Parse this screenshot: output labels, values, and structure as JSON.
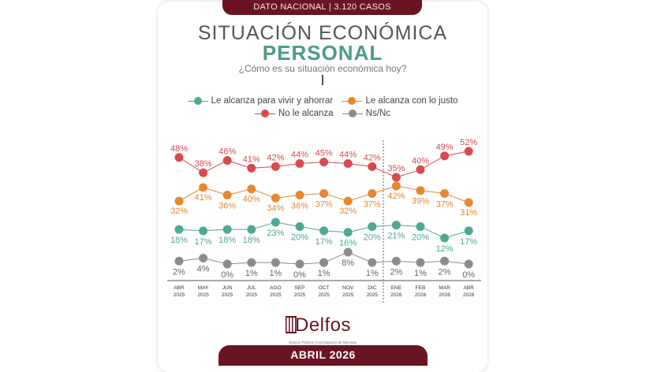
{
  "header": {
    "banner": "DATO NACIONAL | 3.120 CASOS",
    "title_line1": "SITUACIÓN ECONÓMICA",
    "title_line2": "PERSONAL",
    "question": "¿Cómo es su situación económica hoy?"
  },
  "legend": [
    {
      "label": "Le alcanza para vivir y ahorrar",
      "color": "#4fa894"
    },
    {
      "label": "Le alcanza con lo justo",
      "color": "#e8872f"
    },
    {
      "label": "No le alcanza",
      "color": "#d94a4f"
    },
    {
      "label": "Ns/Nc",
      "color": "#8c8c8c"
    }
  ],
  "footer": {
    "logo": "Delfos",
    "logo_tagline": "Opinión Pública | Investigación de Mercado",
    "banner": "ABRIL 2026"
  },
  "colors": {
    "brand_maroon": "#6a1421",
    "title_teal": "#4c9a8a",
    "green": "#4fa894",
    "orange": "#e8872f",
    "red": "#d94a4f",
    "gray": "#8c8c8c"
  },
  "chart_data": {
    "type": "line",
    "title": "SITUACIÓN ECONÓMICA PERSONAL",
    "subtitle": "¿Cómo es su situación económica hoy?",
    "xlabel": "",
    "ylabel": "",
    "grid": false,
    "legend_position": "top",
    "categories": [
      "ABR 2025",
      "MAY 2025",
      "JUN 2025",
      "JUL 2025",
      "AGO 2025",
      "SEP 2025",
      "OCT 2025",
      "NOV 2025",
      "DIC 2025",
      "ENE 2026",
      "FEB 2026",
      "MAR 2026",
      "ABR 2026"
    ],
    "series": [
      {
        "name": "No le alcanza",
        "color": "#d94a4f",
        "values": [
          48,
          38,
          46,
          41,
          42,
          44,
          45,
          44,
          42,
          35,
          40,
          49,
          52
        ]
      },
      {
        "name": "Le alcanza con lo justo",
        "color": "#e8872f",
        "values": [
          32,
          41,
          36,
          40,
          34,
          36,
          37,
          32,
          37,
          42,
          39,
          37,
          31
        ]
      },
      {
        "name": "Le alcanza para vivir y ahorrar",
        "color": "#4fa894",
        "values": [
          18,
          17,
          18,
          18,
          23,
          20,
          17,
          16,
          20,
          21,
          20,
          12,
          17
        ]
      },
      {
        "name": "Ns/Nc",
        "color": "#8c8c8c",
        "values": [
          2,
          4,
          0,
          1,
          1,
          0,
          1,
          8,
          1,
          2,
          1,
          2,
          0
        ]
      }
    ],
    "annotations": [
      "Dashed vertical separator between DIC 2025 and ENE 2026"
    ],
    "unit": "%"
  }
}
